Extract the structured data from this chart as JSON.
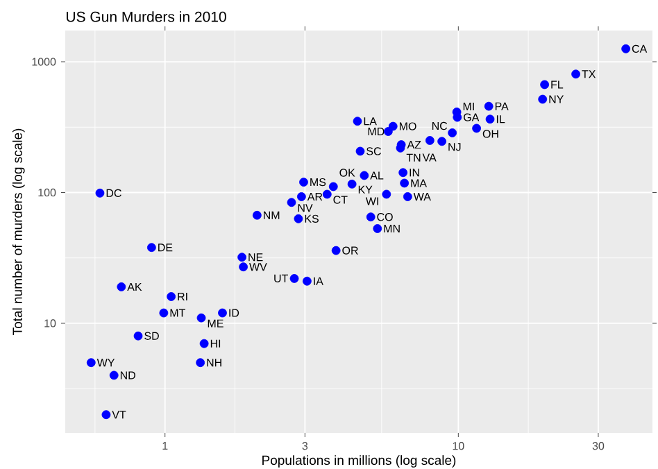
{
  "chart_data": {
    "type": "scatter",
    "title": "US Gun Murders in 2010",
    "xlabel": "Populations in millions (log scale)",
    "ylabel": "Total number of murders (log scale)",
    "log": "xy",
    "grid": true,
    "marker": "circle",
    "xlim": [
      0.457,
      45.9
    ],
    "ylim": [
      1.45,
      1734
    ],
    "xticks": [
      1,
      3,
      10,
      30
    ],
    "yticks": [
      10,
      100,
      1000
    ],
    "series": [
      {
        "color": "#0000ff",
        "x": [
          4.78,
          0.71,
          6.39,
          2.92,
          37.25,
          5.03,
          3.57,
          0.9,
          0.6,
          19.69,
          9.92,
          1.36,
          1.57,
          12.83,
          6.48,
          3.05,
          2.85,
          4.34,
          4.53,
          1.33,
          5.77,
          6.55,
          9.88,
          5.3,
          2.97,
          5.99,
          0.99,
          1.83,
          2.7,
          1.32,
          8.79,
          2.06,
          19.38,
          9.54,
          0.67,
          11.54,
          3.75,
          3.83,
          12.7,
          1.05,
          4.63,
          0.81,
          6.35,
          25.15,
          2.76,
          0.63,
          8.0,
          6.72,
          1.85,
          5.69,
          0.56
        ],
        "values": [
          135,
          19,
          232,
          93,
          1257,
          65,
          97,
          38,
          99,
          669,
          376,
          7,
          12,
          364,
          142,
          21,
          63,
          116,
          351,
          11,
          293,
          118,
          413,
          53,
          120,
          321,
          12,
          32,
          84,
          5,
          246,
          67,
          517,
          286,
          4,
          310,
          111,
          36,
          457,
          16,
          207,
          8,
          219,
          805,
          22,
          2,
          250,
          93,
          27,
          97,
          5
        ]
      }
    ],
    "annotations": [
      {
        "text": "AL",
        "x": 4.78,
        "y": 135
      },
      {
        "text": "AK",
        "x": 0.71,
        "y": 19
      },
      {
        "text": "AZ",
        "x": 6.39,
        "y": 232
      },
      {
        "text": "AR",
        "x": 2.92,
        "y": 93
      },
      {
        "text": "CA",
        "x": 37.25,
        "y": 1257
      },
      {
        "text": "CO",
        "x": 5.03,
        "y": 65
      },
      {
        "text": "CT",
        "x": 3.57,
        "y": 97
      },
      {
        "text": "DE",
        "x": 0.9,
        "y": 38
      },
      {
        "text": "DC",
        "x": 0.6,
        "y": 99
      },
      {
        "text": "FL",
        "x": 19.69,
        "y": 669
      },
      {
        "text": "GA",
        "x": 9.92,
        "y": 376
      },
      {
        "text": "HI",
        "x": 1.36,
        "y": 7
      },
      {
        "text": "ID",
        "x": 1.57,
        "y": 12
      },
      {
        "text": "IL",
        "x": 12.83,
        "y": 364
      },
      {
        "text": "IN",
        "x": 6.48,
        "y": 142
      },
      {
        "text": "IA",
        "x": 3.05,
        "y": 21
      },
      {
        "text": "KS",
        "x": 2.85,
        "y": 63
      },
      {
        "text": "KY",
        "x": 4.34,
        "y": 116
      },
      {
        "text": "LA",
        "x": 4.53,
        "y": 351
      },
      {
        "text": "ME",
        "x": 1.33,
        "y": 11
      },
      {
        "text": "MD",
        "x": 5.77,
        "y": 293
      },
      {
        "text": "MA",
        "x": 6.55,
        "y": 118
      },
      {
        "text": "MI",
        "x": 9.88,
        "y": 413
      },
      {
        "text": "MN",
        "x": 5.3,
        "y": 53
      },
      {
        "text": "MS",
        "x": 2.97,
        "y": 120
      },
      {
        "text": "MO",
        "x": 5.99,
        "y": 321
      },
      {
        "text": "MT",
        "x": 0.99,
        "y": 12
      },
      {
        "text": "NE",
        "x": 1.83,
        "y": 32
      },
      {
        "text": "NV",
        "x": 2.7,
        "y": 84
      },
      {
        "text": "NH",
        "x": 1.32,
        "y": 5
      },
      {
        "text": "NJ",
        "x": 8.79,
        "y": 246
      },
      {
        "text": "NM",
        "x": 2.06,
        "y": 67
      },
      {
        "text": "NY",
        "x": 19.38,
        "y": 517
      },
      {
        "text": "NC",
        "x": 9.54,
        "y": 286
      },
      {
        "text": "ND",
        "x": 0.67,
        "y": 4
      },
      {
        "text": "OH",
        "x": 11.54,
        "y": 310
      },
      {
        "text": "OK",
        "x": 3.75,
        "y": 111
      },
      {
        "text": "OR",
        "x": 3.83,
        "y": 36
      },
      {
        "text": "PA",
        "x": 12.7,
        "y": 457
      },
      {
        "text": "RI",
        "x": 1.05,
        "y": 16
      },
      {
        "text": "SC",
        "x": 4.63,
        "y": 207
      },
      {
        "text": "SD",
        "x": 0.81,
        "y": 8
      },
      {
        "text": "TN",
        "x": 6.35,
        "y": 219
      },
      {
        "text": "TX",
        "x": 25.15,
        "y": 805
      },
      {
        "text": "UT",
        "x": 2.76,
        "y": 22
      },
      {
        "text": "VT",
        "x": 0.63,
        "y": 2
      },
      {
        "text": "VA",
        "x": 8.0,
        "y": 250
      },
      {
        "text": "WA",
        "x": 6.72,
        "y": 93
      },
      {
        "text": "WV",
        "x": 1.85,
        "y": 27
      },
      {
        "text": "WI",
        "x": 5.69,
        "y": 97
      },
      {
        "text": "WY",
        "x": 0.56,
        "y": 5
      }
    ]
  }
}
